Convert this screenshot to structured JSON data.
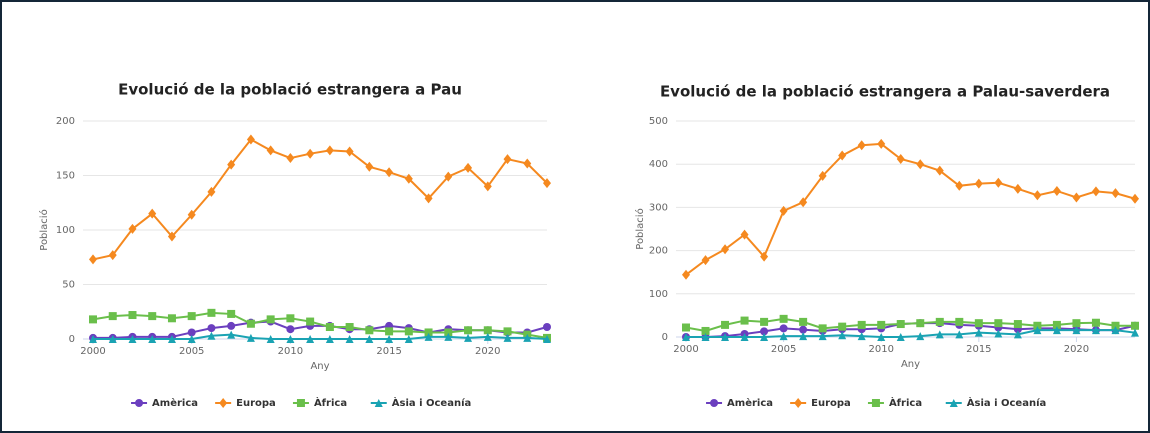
{
  "chart_data": [
    {
      "type": "line",
      "title": "Evolució de la població estrangera a Pau",
      "x_label": "Any",
      "y_label": "Població",
      "x": [
        2000,
        2001,
        2002,
        2003,
        2004,
        2005,
        2006,
        2007,
        2008,
        2009,
        2010,
        2011,
        2012,
        2013,
        2014,
        2015,
        2016,
        2017,
        2018,
        2019,
        2020,
        2021,
        2022,
        2023
      ],
      "xlim": [
        2000,
        2023
      ],
      "xticks": [
        2000,
        2005,
        2010,
        2015,
        2020
      ],
      "ylim": [
        0,
        200
      ],
      "yticks": [
        0,
        50,
        100,
        150,
        200
      ],
      "grid": true,
      "legend": "bottom",
      "series": [
        {
          "name": "Amèrica",
          "color": "#6b3fbf",
          "marker": "circle",
          "values": [
            1,
            1,
            2,
            2,
            2,
            6,
            10,
            12,
            15,
            16,
            9,
            12,
            12,
            9,
            9,
            12,
            10,
            6,
            9,
            8,
            8,
            6,
            6,
            11
          ]
        },
        {
          "name": "Europa",
          "color": "#f5891f",
          "marker": "diamond",
          "values": [
            73,
            77,
            101,
            115,
            94,
            114,
            135,
            160,
            183,
            173,
            166,
            170,
            173,
            172,
            158,
            153,
            147,
            129,
            149,
            157,
            140,
            165,
            161,
            143
          ]
        },
        {
          "name": "Àfrica",
          "color": "#6abf4b",
          "marker": "square",
          "values": [
            18,
            21,
            22,
            21,
            19,
            21,
            24,
            23,
            14,
            18,
            19,
            16,
            11,
            11,
            8,
            7,
            7,
            6,
            6,
            8,
            8,
            7,
            4,
            1
          ]
        },
        {
          "name": "Àsia i Oceanía",
          "color": "#1aa3b3",
          "marker": "triangle",
          "values": [
            0,
            0,
            0,
            0,
            0,
            0,
            3,
            4,
            1,
            0,
            0,
            0,
            0,
            0,
            0,
            0,
            0,
            2,
            2,
            1,
            2,
            1,
            1,
            0
          ]
        }
      ]
    },
    {
      "type": "line",
      "title": "Evolució de la població estrangera a Palau-saverdera",
      "x_label": "Any",
      "y_label": "Població",
      "x": [
        2000,
        2001,
        2002,
        2003,
        2004,
        2005,
        2006,
        2007,
        2008,
        2009,
        2010,
        2011,
        2012,
        2013,
        2014,
        2015,
        2016,
        2017,
        2018,
        2019,
        2020,
        2021,
        2022,
        2023
      ],
      "xlim": [
        2000,
        2023
      ],
      "xticks": [
        2000,
        2005,
        2010,
        2015,
        2020
      ],
      "ylim": [
        0,
        500
      ],
      "yticks": [
        0,
        100,
        200,
        300,
        400,
        500
      ],
      "grid": true,
      "legend": "bottom",
      "series": [
        {
          "name": "Amèrica",
          "color": "#6b3fbf",
          "marker": "circle",
          "values": [
            0,
            0,
            2,
            7,
            13,
            20,
            17,
            14,
            18,
            18,
            20,
            30,
            32,
            32,
            28,
            26,
            22,
            18,
            20,
            20,
            18,
            16,
            16,
            26
          ]
        },
        {
          "name": "Europa",
          "color": "#f5891f",
          "marker": "diamond",
          "values": [
            144,
            178,
            203,
            237,
            186,
            292,
            312,
            373,
            420,
            444,
            447,
            412,
            400,
            385,
            350,
            355,
            357,
            343,
            328,
            338,
            323,
            337,
            333,
            320
          ]
        },
        {
          "name": "Àfrica",
          "color": "#6abf4b",
          "marker": "square",
          "values": [
            22,
            14,
            28,
            38,
            35,
            42,
            35,
            20,
            24,
            28,
            28,
            30,
            32,
            35,
            35,
            32,
            32,
            30,
            26,
            28,
            32,
            33,
            26,
            26
          ]
        },
        {
          "name": "Àsia i Oceanía",
          "color": "#1aa3b3",
          "marker": "triangle",
          "values": [
            0,
            0,
            0,
            0,
            0,
            2,
            2,
            2,
            4,
            2,
            0,
            0,
            2,
            6,
            6,
            10,
            8,
            6,
            16,
            16,
            16,
            16,
            16,
            10
          ]
        }
      ]
    }
  ]
}
